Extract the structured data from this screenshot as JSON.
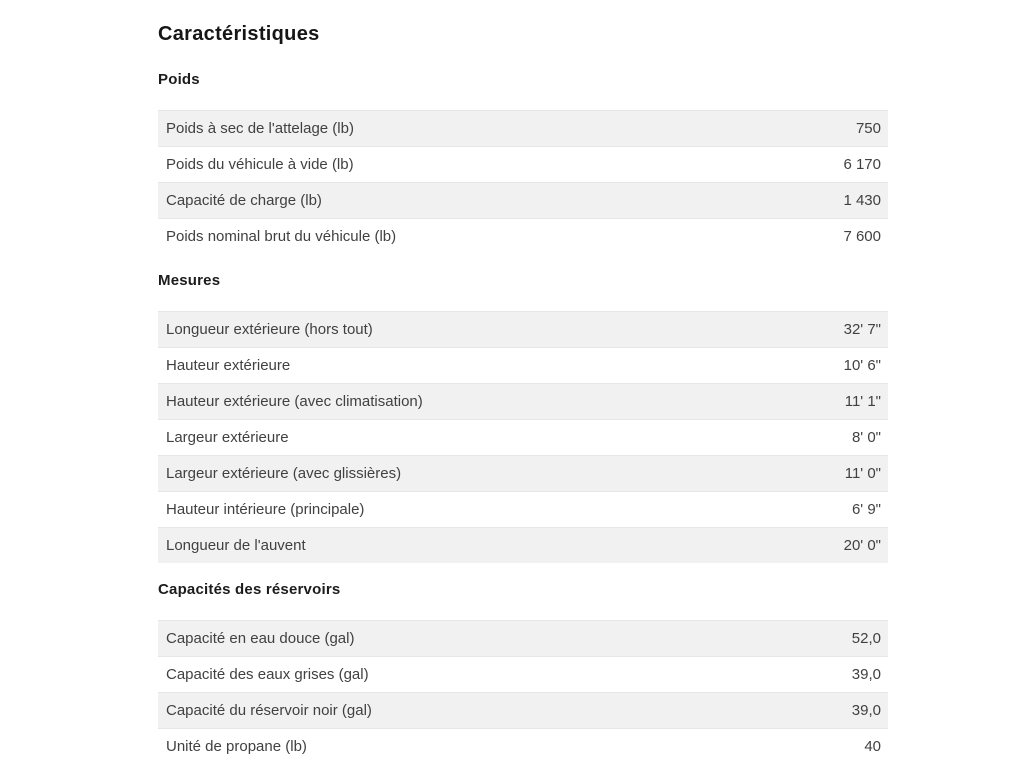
{
  "page": {
    "title": "Caractéristiques",
    "colors": {
      "heading_text": "#1c1c1c",
      "row_text": "#414141",
      "row_stripe_bg": "#f1f1f1",
      "row_border": "#e6e6e6",
      "page_bg": "#ffffff"
    },
    "sections": [
      {
        "heading": "Poids",
        "rows": [
          {
            "label": "Poids à sec de l'attelage (lb)",
            "value": "750"
          },
          {
            "label": "Poids du véhicule à vide (lb)",
            "value": "6 170"
          },
          {
            "label": "Capacité de charge (lb)",
            "value": "1 430"
          },
          {
            "label": "Poids nominal brut du véhicule (lb)",
            "value": "7 600"
          }
        ]
      },
      {
        "heading": "Mesures",
        "rows": [
          {
            "label": "Longueur extérieure (hors tout)",
            "value": "32' 7\""
          },
          {
            "label": "Hauteur extérieure",
            "value": "10' 6\""
          },
          {
            "label": "Hauteur extérieure (avec climatisation)",
            "value": "11' 1\""
          },
          {
            "label": "Largeur extérieure",
            "value": "8' 0\""
          },
          {
            "label": "Largeur extérieure (avec glissières)",
            "value": "11' 0\""
          },
          {
            "label": "Hauteur intérieure (principale)",
            "value": "6' 9\""
          },
          {
            "label": "Longueur de l'auvent",
            "value": "20' 0\""
          }
        ]
      },
      {
        "heading": "Capacités des réservoirs",
        "rows": [
          {
            "label": "Capacité en eau douce (gal)",
            "value": "52,0"
          },
          {
            "label": "Capacité des eaux grises (gal)",
            "value": "39,0"
          },
          {
            "label": "Capacité du réservoir noir (gal)",
            "value": "39,0"
          },
          {
            "label": "Unité de propane (lb)",
            "value": "40"
          }
        ]
      }
    ]
  }
}
